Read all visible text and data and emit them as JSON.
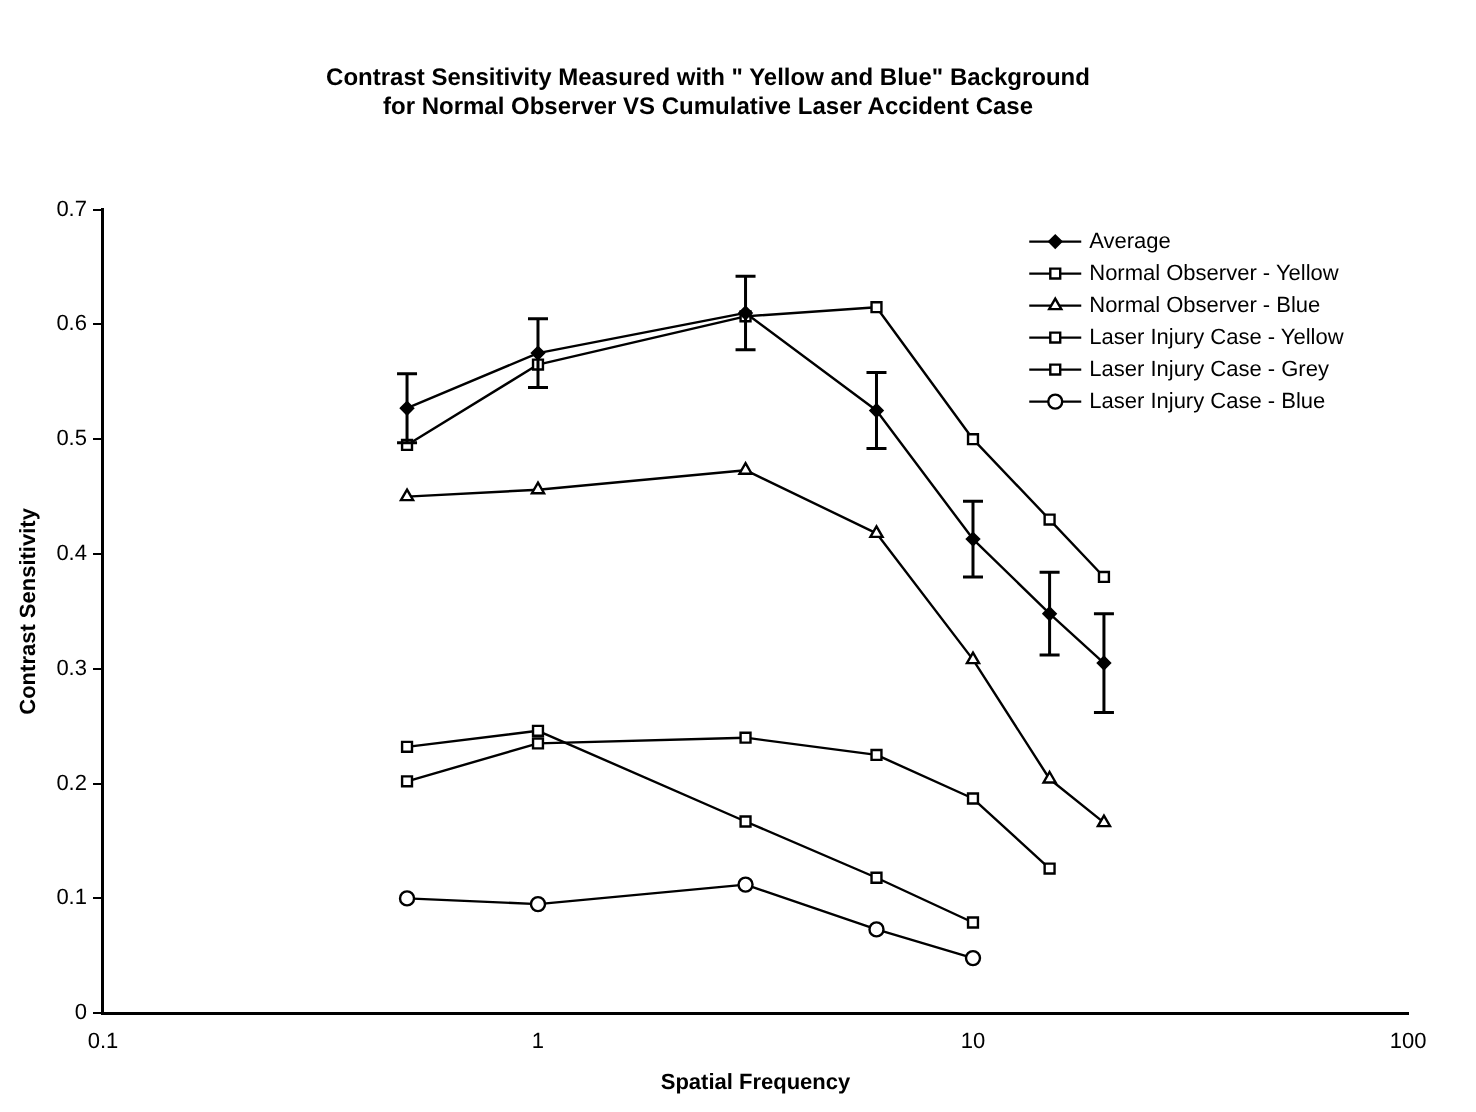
{
  "chart_data": {
    "type": "line",
    "title": "Contrast Sensitivity Measured with \" Yellow and Blue\" Background\nfor Normal Observer VS Cumulative Laser Accident Case",
    "xlabel": "Spatial Frequency",
    "ylabel": "Contrast Sensitivity",
    "log": "x",
    "xlim": [
      0.1,
      100
    ],
    "xticks": [
      0.1,
      1,
      10,
      100
    ],
    "ylim": [
      0,
      0.7
    ],
    "yticks": [
      0,
      0.1,
      0.2,
      0.3,
      0.4,
      0.5,
      0.6,
      0.7
    ],
    "grid": false,
    "legend": "top right",
    "line_style": "solid",
    "series": [
      {
        "name": "Average",
        "color": "#000000",
        "marker": "diamond",
        "x": [
          0.5,
          1,
          3,
          6,
          10,
          15,
          20
        ],
        "values": [
          0.527,
          0.575,
          0.61,
          0.525,
          0.413,
          0.348,
          0.305
        ],
        "errors": [
          0.03,
          0.03,
          0.032,
          0.033,
          0.033,
          0.036,
          0.043
        ]
      },
      {
        "name": "Normal Observer - Yellow",
        "color": "#000000",
        "marker": "square",
        "x": [
          0.5,
          1,
          3,
          6,
          10,
          15,
          20
        ],
        "values": [
          0.495,
          0.565,
          0.607,
          0.615,
          0.5,
          0.43,
          0.38
        ]
      },
      {
        "name": "Normal Observer - Blue",
        "color": "#000000",
        "marker": "triangle",
        "x": [
          0.5,
          1,
          3,
          6,
          10,
          15,
          20
        ],
        "values": [
          0.45,
          0.456,
          0.473,
          0.418,
          0.308,
          0.204,
          0.166
        ]
      },
      {
        "name": "Laser Injury Case - Yellow",
        "color": "#000000",
        "marker": "square",
        "x": [
          0.5,
          1,
          3,
          6,
          10
        ],
        "values": [
          0.232,
          0.246,
          0.167,
          0.118,
          0.079
        ]
      },
      {
        "name": "Laser Injury Case - Grey",
        "color": "#000000",
        "marker": "square",
        "x": [
          0.5,
          1,
          3,
          6,
          10,
          15
        ],
        "values": [
          0.202,
          0.235,
          0.24,
          0.225,
          0.187,
          0.126
        ]
      },
      {
        "name": "Laser Injury Case - Blue",
        "color": "#000000",
        "marker": "circle",
        "x": [
          0.5,
          1,
          3,
          6,
          10
        ],
        "values": [
          0.1,
          0.095,
          0.112,
          0.073,
          0.048
        ]
      }
    ]
  }
}
